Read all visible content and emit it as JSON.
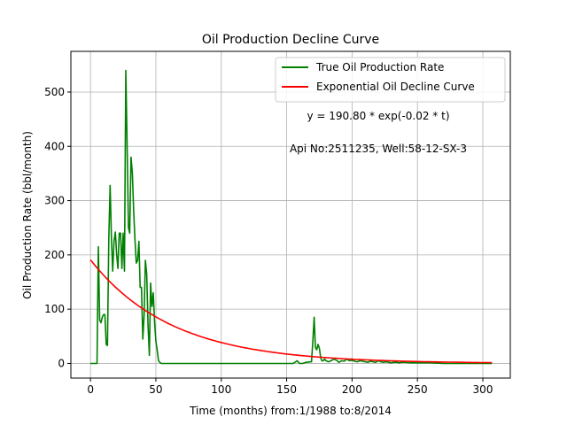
{
  "chart_data": {
    "type": "line",
    "title": "Oil Production Decline Curve",
    "xlabel": "Time (months) from:1/1988 to:8/2014",
    "ylabel": "Oil Production Rate (bbl/month)",
    "xlim": [
      -15,
      321
    ],
    "ylim": [
      -27,
      575
    ],
    "xticks": [
      0,
      50,
      100,
      150,
      200,
      250,
      300
    ],
    "yticks": [
      0,
      100,
      200,
      300,
      400,
      500
    ],
    "grid": true,
    "legend_position": "top-right",
    "annotations": [
      "y = 190.80 * exp(-0.02 * t)",
      "Api No:2511235, Well:58-12-SX-3"
    ],
    "series": [
      {
        "name": "True Oil Production Rate",
        "color": "#008000",
        "x": [
          0,
          1,
          2,
          3,
          4,
          5,
          6,
          7,
          8,
          9,
          10,
          11,
          12,
          13,
          14,
          15,
          16,
          17,
          18,
          19,
          20,
          21,
          22,
          23,
          24,
          25,
          26,
          27,
          28,
          29,
          30,
          31,
          32,
          33,
          34,
          35,
          36,
          37,
          38,
          39,
          40,
          41,
          42,
          43,
          44,
          45,
          46,
          47,
          48,
          49,
          50,
          51,
          52,
          53,
          54,
          55,
          56,
          57,
          58,
          59,
          60,
          61,
          62,
          63,
          64,
          65,
          70,
          80,
          90,
          100,
          110,
          120,
          130,
          140,
          150,
          155,
          158,
          159,
          160,
          161,
          162,
          165,
          169,
          170,
          171,
          172,
          173,
          174,
          175,
          176,
          177,
          178,
          179,
          180,
          182,
          184,
          186,
          188,
          190,
          192,
          194,
          196,
          198,
          200,
          202,
          204,
          206,
          208,
          210,
          212,
          214,
          216,
          218,
          220,
          222,
          224,
          226,
          228,
          230,
          232,
          234,
          236,
          238,
          240,
          245,
          250,
          255,
          260,
          270,
          280,
          290,
          300,
          307
        ],
        "y": [
          0,
          0,
          0,
          0,
          0,
          0,
          215,
          80,
          75,
          85,
          90,
          90,
          35,
          33,
          230,
          328,
          230,
          170,
          225,
          242,
          200,
          175,
          240,
          240,
          175,
          240,
          170,
          540,
          400,
          250,
          240,
          380,
          350,
          280,
          230,
          185,
          190,
          225,
          140,
          140,
          45,
          90,
          190,
          165,
          70,
          15,
          148,
          105,
          130,
          75,
          40,
          25,
          5,
          2,
          0,
          0,
          0,
          0,
          0,
          0,
          0,
          0,
          0,
          0,
          0,
          0,
          0,
          0,
          0,
          0,
          0,
          0,
          0,
          0,
          0,
          0,
          5,
          2,
          0,
          0,
          0,
          2,
          3,
          40,
          85,
          30,
          25,
          35,
          28,
          10,
          5,
          5,
          8,
          5,
          3,
          5,
          8,
          6,
          2,
          5,
          4,
          8,
          5,
          6,
          4,
          3,
          5,
          4,
          3,
          2,
          4,
          3,
          2,
          5,
          3,
          2,
          3,
          2,
          1,
          2,
          2,
          1,
          2,
          2,
          1,
          1,
          1,
          1,
          0,
          0,
          0,
          0,
          0
        ]
      },
      {
        "name": "Exponential Oil Decline Curve",
        "color": "#ff0000",
        "function": "exponential",
        "a": 190.8,
        "b": 0.016,
        "x_range": [
          0,
          307
        ]
      }
    ]
  }
}
